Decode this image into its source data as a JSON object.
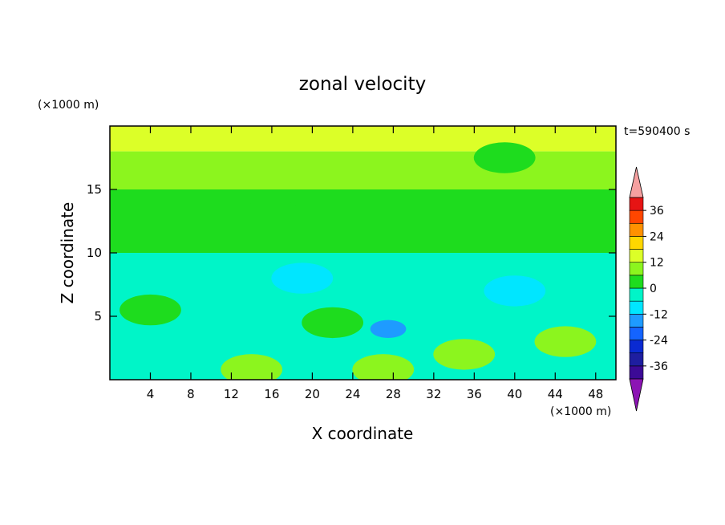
{
  "chart_data": {
    "type": "heatmap",
    "title": "zonal velocity",
    "xlabel": "X coordinate",
    "ylabel": "Z coordinate",
    "x_unit": "(×1000 m)",
    "y_unit": "(×1000 m)",
    "time_label": "t=590400 s",
    "xlim": [
      0,
      50
    ],
    "ylim": [
      0,
      20
    ],
    "x_ticks": [
      4,
      8,
      12,
      16,
      20,
      24,
      28,
      32,
      36,
      40,
      44,
      48
    ],
    "y_ticks": [
      5,
      10,
      15
    ],
    "colorbar": {
      "levels": [
        -36,
        -30,
        -24,
        -18,
        -12,
        -6,
        0,
        6,
        12,
        18,
        24,
        30,
        36
      ],
      "tick_labels": [
        "-36",
        "-24",
        "-12",
        "0",
        "12",
        "24",
        "36"
      ],
      "tick_values": [
        -36,
        -24,
        -12,
        0,
        12,
        24,
        36
      ],
      "colors": [
        "#3c0a96",
        "#1e1ea0",
        "#0a2ad2",
        "#1464ff",
        "#1e9bff",
        "#00e6ff",
        "#00f5c8",
        "#1edc1e",
        "#8cf51e",
        "#dcff28",
        "#ffd700",
        "#ff9100",
        "#ff4600",
        "#e61414"
      ],
      "over_color": "#f5a0a0",
      "under_color": "#8c14b4"
    },
    "approx_layers": [
      {
        "z_range": [
          18,
          20
        ],
        "value": 12
      },
      {
        "z_range": [
          15,
          18
        ],
        "value": 8
      },
      {
        "z_range": [
          10,
          15
        ],
        "value": 4
      },
      {
        "z_range": [
          5,
          10
        ],
        "value": -4
      },
      {
        "z_range": [
          0,
          5
        ],
        "value": -2
      }
    ],
    "features": [
      {
        "x": 27.5,
        "z": 4,
        "value": -16
      },
      {
        "x": 39,
        "z": 17.5,
        "value": 4
      },
      {
        "x": 16,
        "z": 13,
        "value": 3
      },
      {
        "x": 14,
        "z": 0.8,
        "value": 8
      },
      {
        "x": 27,
        "z": 0.8,
        "value": 8
      },
      {
        "x": 45,
        "z": 3,
        "value": 6
      },
      {
        "x": 35,
        "z": 2,
        "value": 6
      },
      {
        "x": 22,
        "z": 4.5,
        "value": 4
      },
      {
        "x": 4,
        "z": 5.5,
        "value": 4
      },
      {
        "x": 40,
        "z": 7,
        "value": -10
      },
      {
        "x": 19,
        "z": 8,
        "value": -10
      }
    ]
  }
}
